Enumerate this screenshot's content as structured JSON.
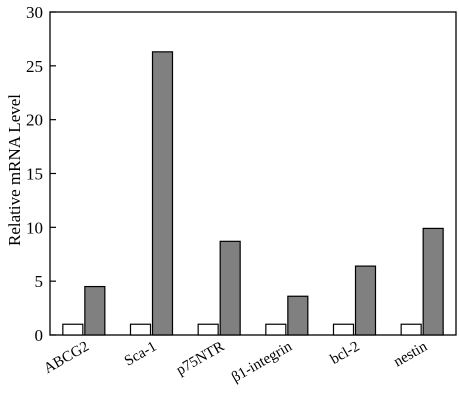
{
  "chart_data": {
    "type": "bar",
    "title": "",
    "xlabel": "",
    "ylabel": "Relative mRNA Level",
    "ylim": [
      0,
      30
    ],
    "yticks": [
      0,
      5,
      10,
      15,
      20,
      25,
      30
    ],
    "grid": false,
    "legend": "none",
    "categories": [
      "ABCG2",
      "Sca-1",
      "p75NTR",
      "β1-integrin",
      "bcl-2",
      "nestin"
    ],
    "series": [
      {
        "values": [
          1,
          1,
          1,
          1,
          1,
          1
        ],
        "color": "#ffffff"
      },
      {
        "values": [
          4.5,
          26.3,
          8.7,
          3.6,
          6.4,
          9.9
        ],
        "color": "#808080"
      }
    ]
  }
}
